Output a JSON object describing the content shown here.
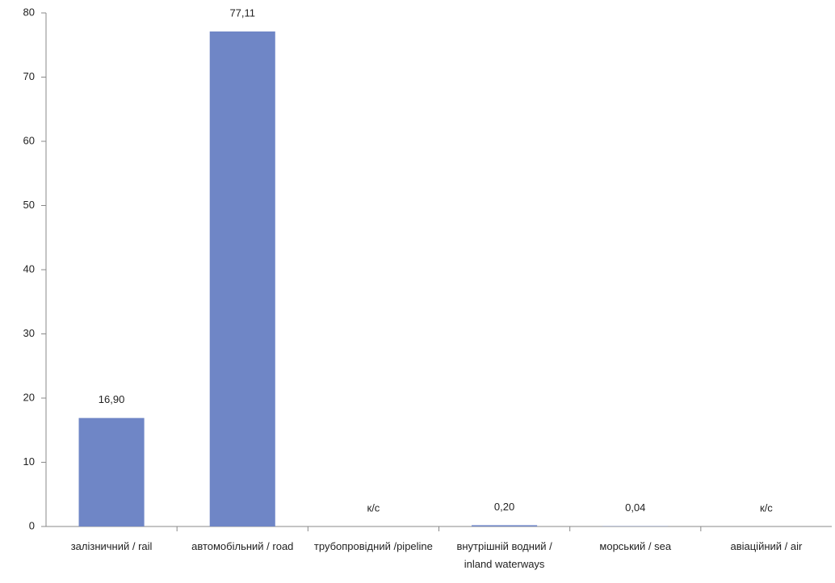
{
  "chart_data": {
    "type": "bar",
    "categories": [
      "залізничний / rail",
      "автомобільний / road",
      "трубопровідний /pipeline",
      "внутрішній водний / inland waterways",
      "морський / sea",
      "авіаційний / air"
    ],
    "values": [
      16.9,
      77.11,
      null,
      0.2,
      0.04,
      null
    ],
    "value_labels": [
      "16,90",
      "77,11",
      "к/с",
      "0,20",
      "0,04",
      "к/с"
    ],
    "color": "#6f86c6",
    "ylim": [
      0,
      80
    ],
    "yticks": [
      0,
      10,
      20,
      30,
      40,
      50,
      60,
      70,
      80
    ],
    "grid": false
  }
}
